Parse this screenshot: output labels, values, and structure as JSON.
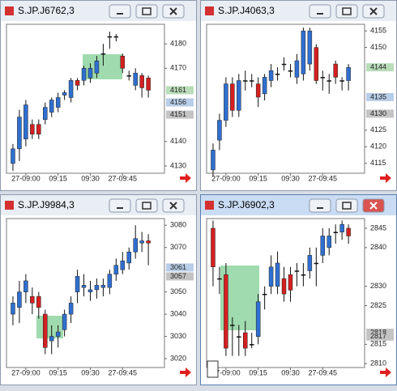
{
  "chart_data": [
    {
      "type": "candlestick",
      "title": "S.JP.J6762,3",
      "open": [
        4131,
        4137,
        4141,
        4147,
        4147,
        4149,
        4152,
        4154,
        4159,
        4158,
        4165,
        4165,
        4166,
        4168,
        4176,
        4183,
        4183,
        4175,
        4167,
        4163,
        4167,
        4166
      ],
      "high": [
        4139,
        4153,
        4157,
        4149,
        4149,
        4156,
        4158,
        4160,
        4161,
        4166,
        4166,
        4171,
        4172,
        4175,
        4180,
        4185,
        4184,
        4176,
        4169,
        4170,
        4168,
        4167
      ],
      "low": [
        4128,
        4132,
        4138,
        4141,
        4141,
        4147,
        4150,
        4152,
        4157,
        4156,
        4161,
        4163,
        4164,
        4166,
        4171,
        4178,
        4181,
        4168,
        4165,
        4161,
        4158,
        4158
      ],
      "close": [
        4137,
        4150,
        4155,
        4143,
        4143,
        4154,
        4157,
        4158,
        4160,
        4165,
        4163,
        4170,
        4170,
        4173,
        4176,
        4183,
        4183,
        4170,
        4167,
        4168,
        4162,
        4161
      ],
      "up_color": "#2f6fd0",
      "down_color": "#d42020",
      "xlim": [
        -1,
        23.5
      ],
      "ylim": [
        4127,
        4188
      ],
      "xticks": [
        {
          "value": 2,
          "label": "27-09:00"
        },
        {
          "value": 7,
          "label": "09:15"
        },
        {
          "value": 12,
          "label": "09:30"
        },
        {
          "value": 17,
          "label": "27-09:45"
        }
      ],
      "yticks": [
        4130,
        4140,
        4170,
        4180
      ],
      "tag_values": [
        4161,
        4156,
        4151
      ],
      "tag_colors": [
        "#b9dcb9",
        "#b8cde8",
        "#c4c4c4"
      ]
    },
    {
      "type": "candlestick",
      "title": "S.JP.J4063,3",
      "open": [
        4113,
        4122,
        4128,
        4139,
        4131,
        4140,
        4140,
        4139,
        4136,
        4140,
        4142,
        4145,
        4143,
        4141,
        4142,
        4145,
        4150,
        4141,
        4140,
        4145,
        4140,
        4140
      ],
      "high": [
        4121,
        4130,
        4141,
        4141,
        4142,
        4143,
        4142,
        4141,
        4142,
        4145,
        4144,
        4147,
        4145,
        4148,
        4156,
        4156,
        4151,
        4143,
        4142,
        4146,
        4141,
        4145
      ],
      "low": [
        4111,
        4119,
        4126,
        4129,
        4129,
        4137,
        4138,
        4132,
        4134,
        4138,
        4140,
        4143,
        4141,
        4139,
        4140,
        4143,
        4139,
        4137,
        4136,
        4139,
        4137,
        4137
      ],
      "close": [
        4119,
        4128,
        4139,
        4131,
        4140,
        4140,
        4140,
        4135,
        4141,
        4143,
        4142,
        4145,
        4143,
        4146,
        4155,
        4155,
        4140,
        4141,
        4140,
        4141,
        4140,
        4144
      ],
      "up_color": "#2f6fd0",
      "down_color": "#d42020",
      "xlim": [
        -1,
        23.5
      ],
      "ylim": [
        4112,
        4157
      ],
      "xticks": [
        {
          "value": 2,
          "label": "27-09:00"
        },
        {
          "value": 7,
          "label": "09:15"
        },
        {
          "value": 12,
          "label": "09:30"
        },
        {
          "value": 17,
          "label": "27-09:45"
        }
      ],
      "yticks": [
        4115,
        4120,
        4125,
        4150,
        4155
      ],
      "tag_values": [
        4144,
        4135,
        4130
      ],
      "tag_colors": [
        "#b9dcb9",
        "#b8cde8",
        "#c4c4c4"
      ]
    },
    {
      "type": "candlestick",
      "title": "S.JP.J9984,3",
      "open": [
        3040,
        3043,
        3050,
        3048,
        3048,
        3040,
        3028,
        3030,
        3033,
        3040,
        3050,
        3052,
        3050,
        3051,
        3052,
        3052,
        3058,
        3060,
        3063,
        3068,
        3072,
        3073
      ],
      "high": [
        3048,
        3055,
        3058,
        3052,
        3050,
        3042,
        3035,
        3035,
        3042,
        3048,
        3060,
        3058,
        3055,
        3056,
        3056,
        3060,
        3065,
        3068,
        3070,
        3080,
        3077,
        3076
      ],
      "low": [
        3035,
        3036,
        3045,
        3040,
        3038,
        3022,
        3022,
        3025,
        3030,
        3036,
        3045,
        3048,
        3046,
        3047,
        3048,
        3049,
        3055,
        3058,
        3060,
        3065,
        3068,
        3062
      ],
      "close": [
        3045,
        3050,
        3055,
        3045,
        3043,
        3025,
        3030,
        3032,
        3040,
        3045,
        3057,
        3053,
        3051,
        3053,
        3053,
        3058,
        3062,
        3064,
        3068,
        3074,
        3073,
        3072
      ],
      "up_color": "#2f6fd0",
      "down_color": "#d42020",
      "xlim": [
        -1,
        23.5
      ],
      "ylim": [
        3016,
        3083
      ],
      "xticks": [
        {
          "value": 2,
          "label": "27-09:00"
        },
        {
          "value": 7,
          "label": "09:15"
        },
        {
          "value": 12,
          "label": "09:30"
        },
        {
          "value": 17,
          "label": "27-09:45"
        }
      ],
      "yticks": [
        3020,
        3030,
        3040,
        3050,
        3070,
        3080
      ],
      "tag_values": [
        3061,
        3057
      ],
      "tag_colors": [
        "#b8cde8",
        "#c4c4c4"
      ]
    },
    {
      "type": "candlestick",
      "title": "S.JP.J6902,3",
      "open": [
        2845,
        2832,
        2833,
        2820,
        2817,
        2818,
        2815,
        2817,
        2828,
        2830,
        2830,
        2832,
        2833,
        2834,
        2833,
        2834,
        2836,
        2838,
        2840,
        2844,
        2844,
        2845
      ],
      "high": [
        2847,
        2835,
        2836,
        2822,
        2820,
        2821,
        2818,
        2828,
        2830,
        2838,
        2839,
        2835,
        2835,
        2836,
        2836,
        2840,
        2840,
        2845,
        2845,
        2846,
        2847,
        2846
      ],
      "low": [
        2830,
        2828,
        2812,
        2812,
        2812,
        2812,
        2814,
        2815,
        2824,
        2828,
        2828,
        2826,
        2826,
        2830,
        2830,
        2832,
        2830,
        2836,
        2838,
        2841,
        2842,
        2841
      ],
      "close": [
        2835,
        2832,
        2814,
        2820,
        2817,
        2814,
        2815,
        2826,
        2828,
        2835,
        2836,
        2828,
        2829,
        2834,
        2833,
        2838,
        2836,
        2843,
        2843,
        2844,
        2846,
        2843
      ],
      "up_color": "#2f6fd0",
      "down_color": "#d42020",
      "xlim": [
        -1,
        23.5
      ],
      "ylim": [
        2809,
        2847.5
      ],
      "xticks": [
        {
          "value": 2,
          "label": "27-09:00"
        },
        {
          "value": 7,
          "label": "09:15"
        },
        {
          "value": 12,
          "label": "09:30"
        },
        {
          "value": 17,
          "label": "27-09:45"
        }
      ],
      "yticks": [
        2810,
        2815,
        2825,
        2830,
        2840,
        2845
      ],
      "tag_values": [
        2818,
        2817
      ],
      "tag_colors": [
        "#c4c4c4",
        "#c4c4c4"
      ]
    }
  ]
}
